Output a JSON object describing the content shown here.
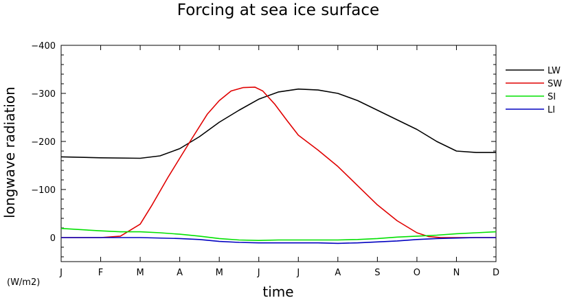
{
  "chart_data": {
    "type": "line",
    "title": "Forcing at sea ice surface",
    "xlabel": "time",
    "ylabel": "longwave radiation",
    "units_label": "(W/m2)",
    "ylim": [
      50,
      -400
    ],
    "yticks": [
      -400,
      -300,
      -200,
      -100,
      0
    ],
    "ytick_labels": [
      "−400",
      "−300",
      "−200",
      "−100",
      "0"
    ],
    "categories": [
      "J",
      "F",
      "M",
      "A",
      "M",
      "J",
      "J",
      "A",
      "S",
      "O",
      "N",
      "D"
    ],
    "legend_position": "right",
    "series": [
      {
        "name": "LW",
        "color": "#000000",
        "x": [
          0,
          1,
          2,
          2.5,
          3,
          3.5,
          4,
          4.5,
          5,
          5.5,
          6,
          6.5,
          7,
          7.5,
          8,
          8.5,
          9,
          9.5,
          10,
          10.5,
          11
        ],
        "y": [
          -168,
          -166,
          -165,
          -170,
          -185,
          -210,
          -240,
          -265,
          -288,
          -303,
          -309,
          -307,
          -300,
          -285,
          -265,
          -245,
          -225,
          -200,
          -180,
          -177,
          -177
        ]
      },
      {
        "name": "SW",
        "color": "#e00000",
        "x": [
          0,
          1,
          1.5,
          2,
          2.3,
          2.7,
          3,
          3.3,
          3.7,
          4,
          4.3,
          4.6,
          4.9,
          5.1,
          5.4,
          5.7,
          6,
          6.5,
          7,
          7.5,
          8,
          8.5,
          9,
          9.3,
          9.6,
          10,
          11
        ],
        "y": [
          0,
          0,
          -3,
          -28,
          -68,
          -125,
          -165,
          -205,
          -257,
          -285,
          -305,
          -312,
          -313,
          -305,
          -278,
          -245,
          -213,
          -182,
          -148,
          -108,
          -68,
          -35,
          -10,
          -2,
          0,
          0,
          0
        ]
      },
      {
        "name": "SI",
        "color": "#00e000",
        "x": [
          0,
          1,
          1.5,
          2,
          2.5,
          3,
          3.5,
          4,
          4.5,
          5,
          5.5,
          6,
          6.5,
          7,
          7.5,
          8,
          8.5,
          9,
          9.5,
          10,
          10.5,
          11
        ],
        "y": [
          -19,
          -14,
          -12,
          -12,
          -10,
          -7,
          -3,
          2,
          5,
          6,
          5,
          5,
          5,
          5,
          4,
          2,
          -1,
          -3,
          -5,
          -8,
          -10,
          -12
        ]
      },
      {
        "name": "LI",
        "color": "#0000c0",
        "x": [
          0,
          1,
          2,
          3,
          3.5,
          4,
          4.5,
          5,
          5.5,
          6,
          6.5,
          7,
          7.5,
          8,
          8.5,
          9,
          9.5,
          10,
          10.5,
          11
        ],
        "y": [
          0,
          0,
          0,
          2,
          4,
          8,
          10,
          11,
          11,
          11,
          11,
          12,
          11,
          9,
          7,
          4,
          2,
          1,
          0,
          0
        ]
      }
    ]
  }
}
